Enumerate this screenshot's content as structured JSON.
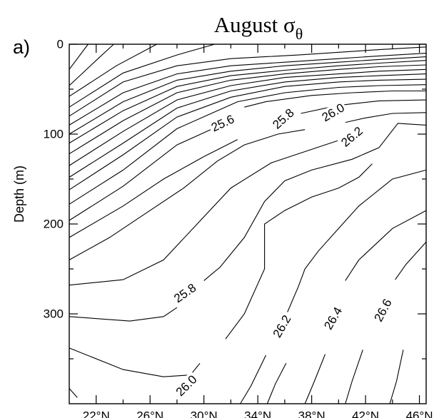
{
  "chart_data": {
    "type": "contour",
    "title": "August σθ",
    "title_main": "August σ",
    "title_sub": "θ",
    "panel_label": "a)",
    "xlabel": "",
    "ylabel": "Depth (m)",
    "xlim": [
      20,
      46.5
    ],
    "ylim": [
      400,
      0
    ],
    "y_inverted": true,
    "grid": false,
    "y_ticks": [
      0,
      100,
      200,
      300
    ],
    "y_ticklabels": [
      "0",
      "100",
      "200",
      "300"
    ],
    "y_minor_ticks": [
      50,
      150,
      250,
      350
    ],
    "x_ticks": [
      22,
      26,
      30,
      34,
      38,
      42,
      46
    ],
    "x_ticklabels": [
      "22°N",
      "26°N",
      "30°N",
      "34°N",
      "38°N",
      "42°N",
      "46°N"
    ],
    "x_minor_ticks": [
      24,
      28,
      32,
      36,
      40,
      44
    ],
    "contour_labels": [
      {
        "text": "25.6",
        "lat": 31.4,
        "depth": 88,
        "angle": -25
      },
      {
        "text": "25.8",
        "lat": 35.9,
        "depth": 83,
        "angle": -42
      },
      {
        "text": "26.0",
        "lat": 39.6,
        "depth": 76,
        "angle": -30
      },
      {
        "text": "26.2",
        "lat": 41.0,
        "depth": 103,
        "angle": -40
      },
      {
        "text": "25.8",
        "lat": 28.6,
        "depth": 277,
        "angle": -35
      },
      {
        "text": "26.2",
        "lat": 35.8,
        "depth": 314,
        "angle": -60
      },
      {
        "text": "26.4",
        "lat": 39.6,
        "depth": 305,
        "angle": -60
      },
      {
        "text": "26.6",
        "lat": 43.3,
        "depth": 296,
        "angle": -62
      },
      {
        "text": "26.0",
        "lat": 28.7,
        "depth": 380,
        "angle": -45
      }
    ],
    "contours": [
      {
        "points": [
          [
            20.0,
            28
          ],
          [
            21.4,
            0
          ]
        ]
      },
      {
        "points": [
          [
            20.0,
            46
          ],
          [
            22.0,
            18
          ],
          [
            23.3,
            0
          ]
        ]
      },
      {
        "points": [
          [
            20.0,
            58
          ],
          [
            23.5,
            24
          ],
          [
            26.5,
            0
          ]
        ]
      },
      {
        "points": [
          [
            20.0,
            70
          ],
          [
            24.0,
            32
          ],
          [
            28.0,
            12
          ],
          [
            30.8,
            0
          ]
        ]
      },
      {
        "points": [
          [
            20.0,
            80
          ],
          [
            24.0,
            42
          ],
          [
            28.0,
            24
          ],
          [
            32.0,
            16
          ],
          [
            34.5,
            14
          ],
          [
            37.0,
            12
          ],
          [
            40.0,
            9
          ],
          [
            43.0,
            6
          ],
          [
            46.5,
            3
          ]
        ]
      },
      {
        "points": [
          [
            20.0,
            90
          ],
          [
            24.0,
            54
          ],
          [
            28.0,
            33
          ],
          [
            32.0,
            24
          ],
          [
            36.0,
            20
          ],
          [
            40.0,
            16
          ],
          [
            43.0,
            13
          ],
          [
            46.5,
            10
          ]
        ]
      },
      {
        "points": [
          [
            20.0,
            100
          ],
          [
            24.0,
            64
          ],
          [
            28.0,
            40
          ],
          [
            32.0,
            30
          ],
          [
            36.0,
            24
          ],
          [
            40.0,
            20
          ],
          [
            43.0,
            17
          ],
          [
            46.5,
            14
          ]
        ]
      },
      {
        "points": [
          [
            20.0,
            110
          ],
          [
            24.0,
            74
          ],
          [
            28.0,
            47
          ],
          [
            32.0,
            35
          ],
          [
            36.0,
            29
          ],
          [
            40.0,
            24
          ],
          [
            43.0,
            21
          ],
          [
            46.5,
            18
          ]
        ]
      },
      {
        "points": [
          [
            20.0,
            122
          ],
          [
            24.0,
            85
          ],
          [
            28.0,
            54
          ],
          [
            32.0,
            40
          ],
          [
            36.0,
            33
          ],
          [
            40.0,
            28
          ],
          [
            43.0,
            25
          ],
          [
            46.5,
            23
          ]
        ]
      },
      {
        "points": [
          [
            20.0,
            135
          ],
          [
            24.0,
            97
          ],
          [
            28.0,
            62
          ],
          [
            32.0,
            46
          ],
          [
            36.0,
            37
          ],
          [
            40.0,
            33
          ],
          [
            43.0,
            30
          ],
          [
            46.5,
            28
          ]
        ]
      },
      {
        "points": [
          [
            20.0,
            148
          ],
          [
            24.0,
            110
          ],
          [
            28.0,
            71
          ],
          [
            32.0,
            52
          ],
          [
            36.0,
            42
          ],
          [
            40.0,
            37
          ],
          [
            43.0,
            35
          ],
          [
            46.5,
            33
          ]
        ]
      },
      {
        "points": [
          [
            20.0,
            162
          ],
          [
            24.0,
            123
          ],
          [
            28.0,
            81
          ],
          [
            32.0,
            59
          ],
          [
            36.0,
            47
          ],
          [
            40.0,
            42
          ],
          [
            43.0,
            40
          ],
          [
            46.5,
            39
          ]
        ]
      },
      {
        "points": [
          [
            20.0,
            178
          ],
          [
            24.0,
            140
          ],
          [
            28.0,
            94
          ],
          [
            31.0,
            74
          ],
          [
            32.5,
            64
          ],
          [
            36.0,
            54
          ],
          [
            40.0,
            48
          ],
          [
            43.0,
            46
          ],
          [
            46.5,
            45
          ]
        ]
      },
      {
        "points": [
          [
            20.0,
            196
          ],
          [
            24.0,
            158
          ],
          [
            28.0,
            112
          ],
          [
            30.5,
            95
          ]
        ]
      },
      {
        "points": [
          [
            33.0,
            70
          ],
          [
            34.6,
            64
          ],
          [
            38.0,
            57
          ],
          [
            41.0,
            54
          ],
          [
            44.0,
            52
          ],
          [
            46.5,
            52
          ]
        ]
      },
      {
        "points": [
          [
            20.0,
            215
          ],
          [
            24.0,
            180
          ],
          [
            27.0,
            150
          ],
          [
            30.0,
            125
          ],
          [
            32.5,
            106
          ]
        ]
      },
      {
        "points": [
          [
            37.2,
            77
          ],
          [
            40.0,
            68
          ],
          [
            43.0,
            63
          ],
          [
            46.5,
            62
          ]
        ]
      },
      {
        "points": [
          [
            20.0,
            240
          ],
          [
            23.0,
            215
          ],
          [
            26.0,
            185
          ],
          [
            28.5,
            160
          ],
          [
            31.0,
            130
          ],
          [
            33.0,
            112
          ],
          [
            35.5,
            100
          ],
          [
            37.5,
            95
          ]
        ]
      },
      {
        "points": [
          [
            40.5,
            87
          ],
          [
            42.0,
            82
          ],
          [
            44.0,
            77
          ],
          [
            46.5,
            76
          ]
        ]
      },
      {
        "points": [
          [
            20.0,
            268
          ],
          [
            24.0,
            262
          ],
          [
            27.0,
            240
          ],
          [
            29.5,
            200
          ],
          [
            32.0,
            160
          ],
          [
            35.0,
            132
          ],
          [
            38.0,
            117
          ],
          [
            41.0,
            102
          ]
        ]
      },
      {
        "points": [
          [
            20.0,
            303
          ],
          [
            24.5,
            308
          ],
          [
            27.0,
            303
          ],
          [
            28.0,
            293
          ]
        ]
      },
      {
        "points": [
          [
            30.0,
            263
          ],
          [
            31.2,
            248
          ],
          [
            33.0,
            215
          ],
          [
            34.5,
            175
          ],
          [
            36.0,
            152
          ],
          [
            38.0,
            140
          ],
          [
            41.0,
            128
          ],
          [
            43.0,
            115
          ],
          [
            44.4,
            88
          ],
          [
            46.5,
            90
          ]
        ]
      },
      {
        "points": [
          [
            20.0,
            338
          ],
          [
            24.0,
            362
          ],
          [
            27.0,
            370
          ],
          [
            29.0,
            368
          ],
          [
            29.7,
            355
          ]
        ]
      },
      {
        "points": [
          [
            31.6,
            328
          ],
          [
            33.0,
            300
          ],
          [
            34.5,
            250
          ],
          [
            34.5,
            200
          ],
          [
            36.0,
            185
          ],
          [
            38.0,
            170
          ],
          [
            40.0,
            160
          ],
          [
            41.5,
            148
          ],
          [
            42.5,
            133
          ]
        ]
      },
      {
        "points": [
          [
            20.0,
            383
          ],
          [
            20.6,
            393
          ]
        ]
      },
      {
        "points": [
          [
            32.7,
            400
          ],
          [
            33.5,
            380
          ],
          [
            34.6,
            346
          ]
        ]
      },
      {
        "points": [
          [
            36.2,
            298
          ],
          [
            37.0,
            270
          ],
          [
            37.5,
            250
          ],
          [
            38.5,
            230
          ],
          [
            40.0,
            205
          ],
          [
            41.5,
            180
          ],
          [
            44.0,
            150
          ],
          [
            46.5,
            140
          ]
        ]
      },
      {
        "points": [
          [
            34.7,
            400
          ],
          [
            35.3,
            378
          ],
          [
            36.1,
            355
          ]
        ]
      },
      {
        "points": [
          [
            37.5,
            400
          ],
          [
            38.2,
            375
          ],
          [
            39.0,
            345
          ]
        ]
      },
      {
        "points": [
          [
            40.5,
            263
          ],
          [
            41.5,
            240
          ],
          [
            44.0,
            205
          ],
          [
            46.5,
            185
          ]
        ]
      },
      {
        "points": [
          [
            40.5,
            400
          ],
          [
            41.0,
            375
          ],
          [
            41.8,
            340
          ]
        ]
      },
      {
        "points": [
          [
            44.2,
            262
          ],
          [
            45.0,
            245
          ],
          [
            46.5,
            220
          ]
        ]
      },
      {
        "points": [
          [
            43.8,
            400
          ],
          [
            44.3,
            375
          ],
          [
            44.8,
            340
          ]
        ]
      }
    ]
  }
}
